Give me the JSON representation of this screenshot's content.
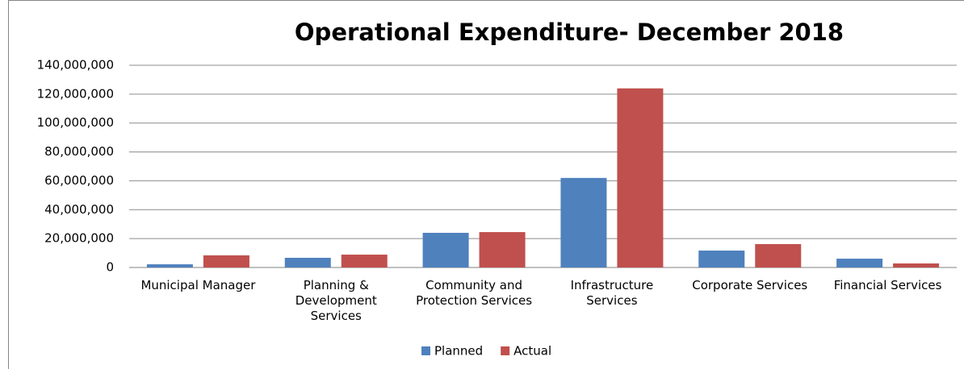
{
  "chart_data": {
    "type": "bar",
    "title": "Operational Expenditure-  December 2018",
    "categories": [
      "Municipal Manager",
      "Planning & Development Services",
      "Community and Protection Services",
      "Infrastructure Services",
      "Corporate Services",
      "Financial Services"
    ],
    "series": [
      {
        "name": "Planned",
        "color": "#4f81bd",
        "values": [
          2200000,
          6700000,
          24000000,
          62000000,
          11700000,
          6100000
        ]
      },
      {
        "name": "Actual",
        "color": "#c0504d",
        "values": [
          8400000,
          8900000,
          24500000,
          124000000,
          16200000,
          2800000
        ]
      }
    ],
    "ylim": [
      0,
      140000000
    ],
    "yticks": [
      0,
      {
        "value": 20000000,
        "label": "20,000,000"
      },
      {
        "value": 40000000,
        "label": "40,000,000"
      },
      {
        "value": 60000000,
        "label": "60,000,000"
      },
      {
        "value": 80000000,
        "label": "80,000,000"
      },
      {
        "value": 100000000,
        "label": "100,000,000"
      },
      {
        "value": 120000000,
        "label": "120,000,000"
      },
      {
        "value": 140000000,
        "label": "140,000,000"
      }
    ],
    "grid": true,
    "legend": "bottom"
  }
}
